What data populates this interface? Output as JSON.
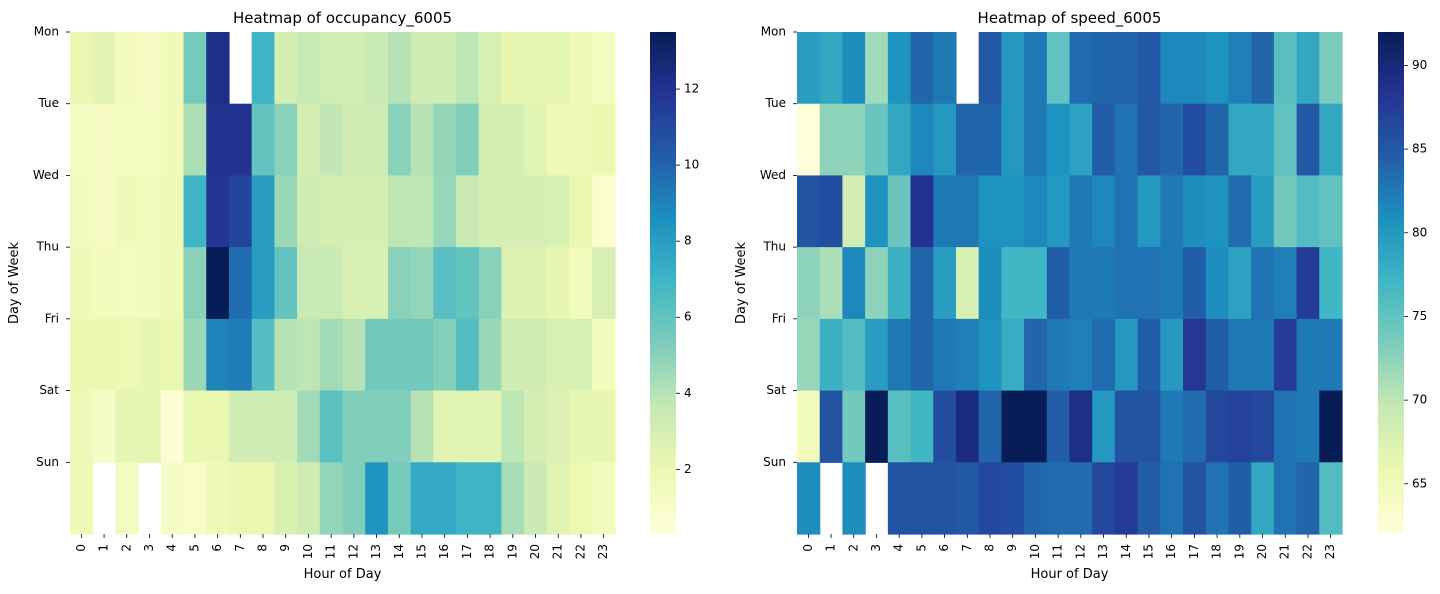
{
  "chart_data": [
    {
      "type": "heatmap",
      "title": "Heatmap of occupancy_6005",
      "xlabel": "Hour of Day",
      "ylabel": "Day of Week",
      "x": [
        "0",
        "1",
        "2",
        "3",
        "4",
        "5",
        "6",
        "7",
        "8",
        "9",
        "10",
        "11",
        "12",
        "13",
        "14",
        "15",
        "16",
        "17",
        "18",
        "19",
        "20",
        "21",
        "22",
        "23"
      ],
      "y": [
        "Mon",
        "Tue",
        "Wed",
        "Thu",
        "Fri",
        "Sat",
        "Sun"
      ],
      "colormap": "YlGnBu",
      "vmin": 0.3,
      "vmax": 13.5,
      "colorbar_ticks": [
        2,
        4,
        6,
        8,
        10,
        12
      ],
      "colorbar_tick_labels": [
        "2",
        "4",
        "6",
        "8",
        "10",
        "12"
      ],
      "values": [
        [
          2.0,
          2.4,
          1.5,
          1.2,
          1.6,
          5.5,
          12.2,
          null,
          7.0,
          3.0,
          3.5,
          3.2,
          3.2,
          3.5,
          4.0,
          3.3,
          3.3,
          3.8,
          2.8,
          2.2,
          2.2,
          2.3,
          1.6,
          1.3
        ],
        [
          1.3,
          1.2,
          1.3,
          1.3,
          1.6,
          4.2,
          12.0,
          12.0,
          6.0,
          5.0,
          3.0,
          3.7,
          3.3,
          3.3,
          5.0,
          4.0,
          4.8,
          5.2,
          3.0,
          3.0,
          2.5,
          1.8,
          1.8,
          2.0
        ],
        [
          1.5,
          1.2,
          1.7,
          1.5,
          1.7,
          7.0,
          11.8,
          11.2,
          8.0,
          4.6,
          3.3,
          3.0,
          3.0,
          3.0,
          3.8,
          3.8,
          4.7,
          3.5,
          3.0,
          3.0,
          3.0,
          2.8,
          2.0,
          0.7
        ],
        [
          1.6,
          1.5,
          1.3,
          1.5,
          1.7,
          5.0,
          13.5,
          9.7,
          8.0,
          6.0,
          3.5,
          3.5,
          2.8,
          2.8,
          5.0,
          4.8,
          6.3,
          6.0,
          5.0,
          2.6,
          2.6,
          2.2,
          1.5,
          2.9
        ],
        [
          2.0,
          2.0,
          1.9,
          2.2,
          2.1,
          4.6,
          9.0,
          9.2,
          6.4,
          4.0,
          3.8,
          4.4,
          4.0,
          5.6,
          5.6,
          5.6,
          5.1,
          6.4,
          4.6,
          3.3,
          3.3,
          2.8,
          2.8,
          1.4
        ],
        [
          1.6,
          1.1,
          2.3,
          2.3,
          0.5,
          2.1,
          2.1,
          3.3,
          3.3,
          3.3,
          4.5,
          6.2,
          5.2,
          5.2,
          5.2,
          4.0,
          2.5,
          2.5,
          2.5,
          3.8,
          3.0,
          2.7,
          2.2,
          2.2
        ],
        [
          1.7,
          null,
          1.3,
          null,
          1.1,
          1.0,
          1.6,
          2.0,
          2.0,
          2.8,
          3.3,
          4.8,
          5.2,
          8.4,
          5.5,
          7.5,
          7.5,
          7.0,
          7.0,
          4.3,
          3.4,
          2.5,
          1.9,
          1.5
        ]
      ]
    },
    {
      "type": "heatmap",
      "title": "Heatmap of speed_6005",
      "xlabel": "Hour of Day",
      "ylabel": "Day of Week",
      "x": [
        "0",
        "1",
        "2",
        "3",
        "4",
        "5",
        "6",
        "7",
        "8",
        "9",
        "10",
        "11",
        "12",
        "13",
        "14",
        "15",
        "16",
        "17",
        "18",
        "19",
        "20",
        "21",
        "22",
        "23"
      ],
      "y": [
        "Mon",
        "Tue",
        "Wed",
        "Thu",
        "Fri",
        "Sat",
        "Sun"
      ],
      "colormap": "YlGnBu",
      "vmin": 62,
      "vmax": 92,
      "colorbar_ticks": [
        65,
        70,
        75,
        80,
        85,
        90
      ],
      "colorbar_tick_labels": [
        "65",
        "70",
        "75",
        "80",
        "85",
        "90"
      ],
      "values": [
        [
          79.5,
          78.5,
          81,
          71.5,
          80.5,
          84,
          82.5,
          null,
          85,
          80,
          82.5,
          75,
          83.5,
          84,
          84,
          85,
          81.5,
          81.5,
          80.5,
          82,
          84,
          75.5,
          78.5,
          73.5
        ],
        [
          62,
          72.5,
          72.5,
          74.5,
          78.5,
          81.5,
          80,
          84,
          84,
          80,
          82.5,
          80.5,
          79,
          84.5,
          83,
          85,
          84,
          86,
          84,
          78.5,
          78.5,
          75,
          85,
          78.5
        ],
        [
          85.5,
          86,
          68.5,
          80.5,
          74.5,
          88.5,
          82.5,
          82.5,
          80.5,
          80.5,
          81.5,
          80,
          82.5,
          81.5,
          83,
          80,
          82.5,
          81,
          80.5,
          83.5,
          79.5,
          74,
          76,
          75
        ],
        [
          72.5,
          71,
          81.5,
          72.5,
          77.5,
          84,
          79.5,
          68,
          81,
          77,
          77,
          84.5,
          82.5,
          82.5,
          83,
          83,
          82.5,
          84.5,
          81,
          79,
          83,
          82,
          87.5,
          77
        ],
        [
          72,
          77.5,
          76,
          79.5,
          82.5,
          84,
          82.5,
          82,
          80.5,
          78,
          84,
          82.5,
          82,
          83.5,
          80,
          84.5,
          80,
          88,
          84.5,
          82.5,
          82.5,
          87.5,
          82.5,
          82.5
        ],
        [
          64.5,
          85.5,
          74,
          92,
          75.5,
          77,
          86,
          89.5,
          84,
          92,
          92,
          84.5,
          89,
          80,
          85.5,
          85.5,
          82.5,
          83.5,
          86.5,
          87,
          86.5,
          83,
          82.5,
          92
        ],
        [
          81,
          null,
          81,
          null,
          85.5,
          85.5,
          85.5,
          85,
          86.5,
          86,
          84,
          83.5,
          83.5,
          86.5,
          87.5,
          84.5,
          83,
          85.5,
          83,
          84.5,
          78.5,
          83,
          84,
          76
        ]
      ]
    }
  ]
}
